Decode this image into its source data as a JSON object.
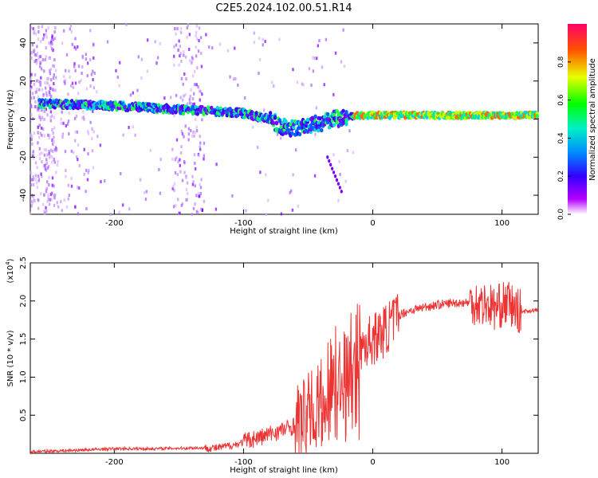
{
  "title": "C2E5.2024.102.00.51.R14",
  "chart_data": [
    {
      "type": "heatmap",
      "title": "C2E5.2024.102.00.51.R14",
      "xlabel": "Height of straight line (km)",
      "ylabel": "Frequency (Hz)",
      "xlim": [
        -265,
        128
      ],
      "ylim": [
        -50,
        50
      ],
      "xticks": [
        -200,
        -100,
        0,
        100
      ],
      "yticks": [
        -40,
        -20,
        0,
        20,
        40
      ],
      "colorbar": {
        "label": "Normalized spectral amplitude",
        "range": [
          0,
          1
        ],
        "ticks": [
          "0.0",
          "0.2",
          "0.4",
          "0.6",
          "0.8"
        ]
      },
      "ridge": {
        "description": "dominant frequency track",
        "x": [
          -250,
          -200,
          -150,
          -120,
          -100,
          -80,
          -70,
          -60,
          -50,
          -40,
          -30,
          -20,
          -10,
          0,
          20,
          50,
          80,
          100,
          128
        ],
        "y": [
          8,
          7,
          5,
          4,
          3,
          0,
          -4,
          -5,
          -3,
          -2,
          0,
          1,
          2,
          2,
          2,
          2,
          2,
          2,
          2
        ]
      }
    },
    {
      "type": "line",
      "xlabel": "Height of straight line (km)",
      "ylabel": "SNR (10 * v/v)",
      "y_multiplier": "(x10",
      "y_multiplier_exp": "4",
      "y_multiplier_close": ")",
      "xlim": [
        -265,
        128
      ],
      "ylim": [
        0,
        2.5
      ],
      "xticks": [
        -200,
        -100,
        0,
        100
      ],
      "yticks": [
        "0.5",
        "1.0",
        "1.5",
        "2.0",
        "2.5"
      ],
      "color": "#ee3333",
      "x": [
        -265,
        -230,
        -200,
        -170,
        -140,
        -120,
        -105,
        -95,
        -85,
        -75,
        -65,
        -55,
        -45,
        -40,
        -35,
        -30,
        -25,
        -20,
        -15,
        -10,
        -5,
        0,
        5,
        10,
        15,
        20,
        30,
        40,
        50,
        60,
        70,
        80,
        85,
        90,
        95,
        100,
        105,
        110,
        115,
        120,
        128
      ],
      "y": [
        0.02,
        0.04,
        0.06,
        0.06,
        0.07,
        0.07,
        0.12,
        0.18,
        0.22,
        0.28,
        0.33,
        0.42,
        0.6,
        0.8,
        0.95,
        1.1,
        1.2,
        1.35,
        1.45,
        1.4,
        1.45,
        1.5,
        1.55,
        1.62,
        1.72,
        1.82,
        1.88,
        1.92,
        1.95,
        1.97,
        1.98,
        1.98,
        1.96,
        1.95,
        1.9,
        1.95,
        1.98,
        1.88,
        1.86,
        1.87,
        1.88
      ]
    }
  ]
}
